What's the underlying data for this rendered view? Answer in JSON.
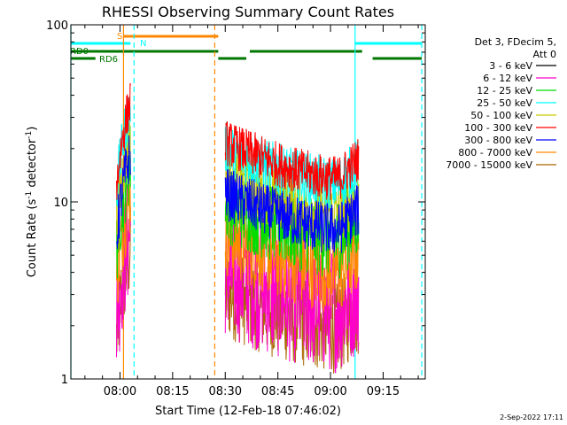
{
  "chart_data": {
    "type": "line",
    "title": "RHESSI Observing Summary Count Rates",
    "xlabel": "Start Time (12-Feb-18 07:46:02)",
    "ylabel": "Count Rate (s",
    "ylabel_sup": "-1",
    "ylabel_tail": " detector",
    "ylabel_end": ")",
    "y_scale": "log",
    "ylim": [
      1,
      100
    ],
    "x_range": [
      "07:46",
      "09:27"
    ],
    "x_ticks": [
      "08:00",
      "08:15",
      "08:30",
      "08:45",
      "09:00",
      "09:15"
    ],
    "y_ticks": [
      "1",
      "10",
      "100"
    ],
    "grid": false,
    "legend_position": "right",
    "legend_header": [
      "Det 3, FDecim 5,",
      "Att 0"
    ],
    "series": [
      {
        "name": "3 - 6 keV",
        "color": "#000000"
      },
      {
        "name": "6 - 12 keV",
        "color": "#ff00cc"
      },
      {
        "name": "12 - 25 keV",
        "color": "#00dd00"
      },
      {
        "name": "25 - 50 keV",
        "color": "#00ffff"
      },
      {
        "name": "50 - 100 keV",
        "color": "#cccc00"
      },
      {
        "name": "100 - 300 keV",
        "color": "#ff0000"
      },
      {
        "name": "300 - 800 keV",
        "color": "#0000ff"
      },
      {
        "name": "800 - 7000 keV",
        "color": "#ff8800"
      },
      {
        "name": "7000 - 15000 keV",
        "color": "#aa6600"
      }
    ],
    "flags": [
      {
        "label": "S",
        "color": "#ff8800",
        "segments": [
          [
            "08:01",
            "08:28"
          ]
        ]
      },
      {
        "label": "N",
        "color": "#00ffff",
        "segments": [
          [
            "07:46",
            "08:03"
          ],
          [
            "09:07",
            "09:26"
          ]
        ]
      },
      {
        "label": "RD0",
        "color": "#007700",
        "segments": [
          [
            "07:46",
            "08:28"
          ],
          [
            "08:37",
            "09:09"
          ]
        ]
      },
      {
        "label": "RD6",
        "color": "#007700",
        "segments": [
          [
            "07:46",
            "07:53"
          ],
          [
            "08:28",
            "08:36"
          ],
          [
            "09:12",
            "09:26"
          ]
        ]
      }
    ],
    "night_lines": [
      {
        "time": "07:46",
        "style": "solid",
        "color": "#00ffff"
      },
      {
        "time": "08:01",
        "style": "solid",
        "color": "#ff8800"
      },
      {
        "time": "08:04",
        "style": "dashed",
        "color": "#00ffff"
      },
      {
        "time": "08:27",
        "style": "dashed",
        "color": "#ff8800"
      },
      {
        "time": "09:07",
        "style": "solid",
        "color": "#00ffff"
      },
      {
        "time": "09:26",
        "style": "dashed",
        "color": "#00ffff"
      }
    ],
    "data_intervals": [
      [
        "07:59",
        "08:03"
      ],
      [
        "08:30",
        "09:08"
      ]
    ]
  },
  "footer": {
    "date": "2-Sep-2022 17:11"
  }
}
